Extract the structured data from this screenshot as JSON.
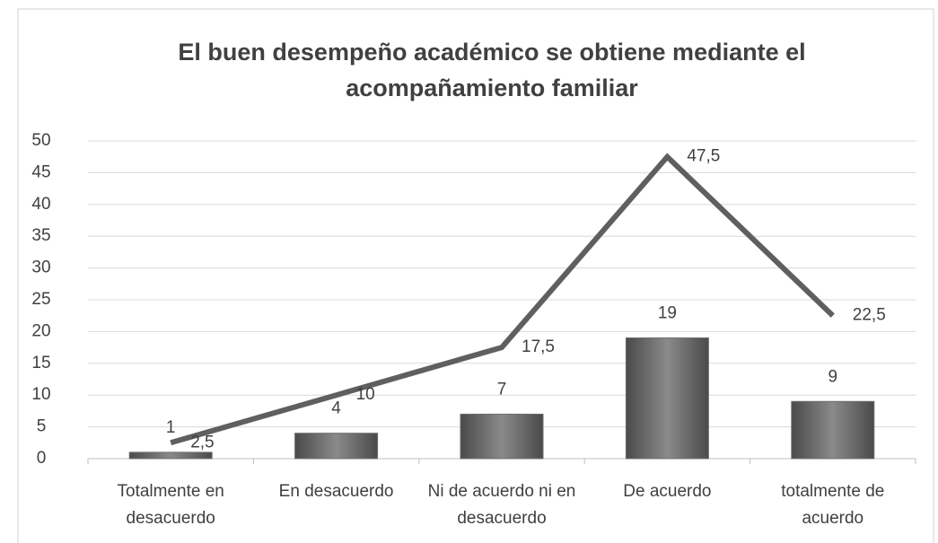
{
  "chart_data": {
    "type": "bar",
    "title": "El buen desempeño académico se obtiene mediante el acompañamiento familiar",
    "categories": [
      "Totalmente en desacuerdo",
      "En desacuerdo",
      "Ni de acuerdo ni en desacuerdo",
      "De acuerdo",
      "totalmente de acuerdo"
    ],
    "series": [
      {
        "type": "bar",
        "color": "#6e6e6e",
        "values": [
          1,
          4,
          7,
          19,
          9
        ]
      },
      {
        "type": "line",
        "color": "#5f5f5f",
        "values": [
          2.5,
          10,
          17.5,
          47.5,
          22.5
        ],
        "value_labels": [
          "2,5",
          "10",
          "17,5",
          "47,5",
          "22,5"
        ]
      }
    ],
    "ylim": [
      0,
      50
    ],
    "yticks": [
      0,
      5,
      10,
      15,
      20,
      25,
      30,
      35,
      40,
      45,
      50
    ],
    "grid": true
  }
}
